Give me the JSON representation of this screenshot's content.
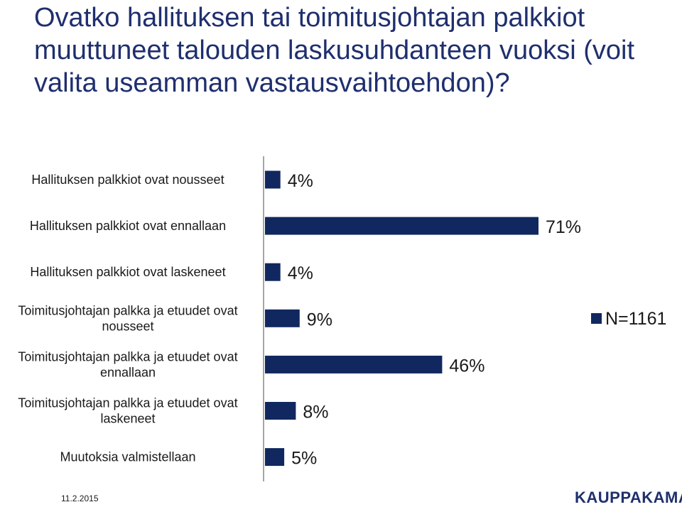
{
  "title": "Ovatko hallituksen tai toimitusjohtajan palkkiot muuttuneet talouden laskusuhdanteen vuoksi (voit valita useamman vastausvaihtoehdon)?",
  "footer": {
    "date": "11.2.2015",
    "brand": "KAUPPAKAMARI"
  },
  "colors": {
    "bar": "#10285f",
    "title": "#1f2f6e"
  },
  "chart_data": {
    "type": "bar",
    "orientation": "horizontal",
    "categories": [
      [
        "Hallituksen palkkiot ovat nousseet"
      ],
      [
        "Hallituksen palkkiot ovat ennallaan"
      ],
      [
        "Hallituksen palkkiot ovat laskeneet"
      ],
      [
        "Toimitusjohtajan palkka ja etuudet ovat",
        "nousseet"
      ],
      [
        "Toimitusjohtajan palkka ja etuudet ovat",
        "ennallaan"
      ],
      [
        "Toimitusjohtajan palkka ja etuudet ovat",
        "laskeneet"
      ],
      [
        "Muutoksia valmistellaan"
      ]
    ],
    "series": [
      {
        "name": "N=1161",
        "values": [
          4,
          71,
          4,
          9,
          46,
          8,
          5
        ],
        "labels": [
          "4%",
          "71%",
          "4%",
          "9%",
          "46%",
          "8%",
          "5%"
        ]
      }
    ],
    "xlim": [
      0,
      100
    ],
    "grid": false,
    "legend": "right"
  }
}
